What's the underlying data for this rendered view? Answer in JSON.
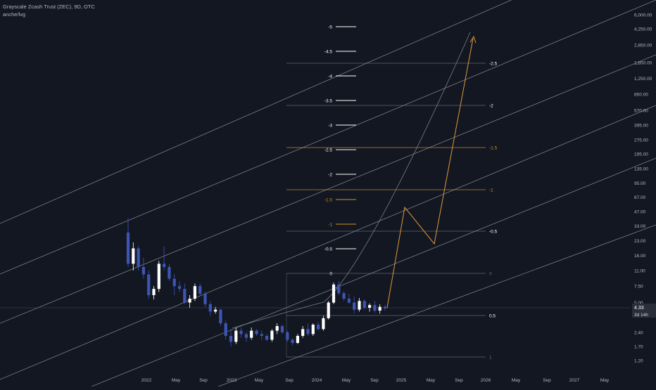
{
  "header": {
    "title": "Grayscale Zcash Trust (ZEC), 9D, OTC",
    "subtitle": "anche/lvg"
  },
  "chart_data": {
    "type": "candlestick",
    "y_scale": "log",
    "ylim": [
      1.1,
      8000
    ],
    "x_ticks": [
      "2022",
      "May",
      "Sep",
      "2023",
      "May",
      "Sep",
      "2024",
      "May",
      "Sep",
      "2025",
      "May",
      "Sep",
      "2026",
      "May",
      "Sep",
      "2027",
      "May"
    ],
    "y_ticks": [
      "6,000.00",
      "4,250.00",
      "2,850.00",
      "1,850.00",
      "1,250.00",
      "850.00",
      "570.00",
      "395.00",
      "275.00",
      "195.00",
      "135.00",
      "95.00",
      "67.00",
      "47.00",
      "33.00",
      "23.00",
      "16.00",
      "11.00",
      "7.50",
      "5.00",
      "2.40",
      "1.70",
      "1.20"
    ],
    "price_label": "4.33",
    "countdown_label": "3d 14h",
    "fib_left_labels": [
      "-5",
      "-4.5",
      "-4",
      "-3.5",
      "-3",
      "-2.5",
      "-2",
      "-1.5",
      "-1",
      "-0.5",
      "0"
    ],
    "fib_right_labels": [
      "-2.5",
      "-2",
      "-1.5",
      "-1",
      "-0.5",
      "0",
      "0.5",
      "1"
    ],
    "candles": [
      {
        "o": 28,
        "h": 40,
        "l": 12,
        "c": 13
      },
      {
        "o": 13,
        "h": 22,
        "l": 11,
        "c": 19
      },
      {
        "o": 19,
        "h": 20,
        "l": 11,
        "c": 12
      },
      {
        "o": 12,
        "h": 15,
        "l": 9,
        "c": 10
      },
      {
        "o": 10,
        "h": 11,
        "l": 5.5,
        "c": 6
      },
      {
        "o": 6,
        "h": 7.5,
        "l": 5.4,
        "c": 7
      },
      {
        "o": 7,
        "h": 14,
        "l": 6.5,
        "c": 13
      },
      {
        "o": 13,
        "h": 20,
        "l": 11,
        "c": 12
      },
      {
        "o": 12,
        "h": 13,
        "l": 8.5,
        "c": 9
      },
      {
        "o": 9,
        "h": 10,
        "l": 6,
        "c": 7.5
      },
      {
        "o": 7.5,
        "h": 8.5,
        "l": 6.5,
        "c": 7
      },
      {
        "o": 7,
        "h": 8,
        "l": 4.8,
        "c": 5
      },
      {
        "o": 5,
        "h": 6,
        "l": 4.4,
        "c": 5.5
      },
      {
        "o": 5.5,
        "h": 8,
        "l": 5.2,
        "c": 7.5
      },
      {
        "o": 7.5,
        "h": 8,
        "l": 6,
        "c": 6.2
      },
      {
        "o": 6.2,
        "h": 6.5,
        "l": 4.5,
        "c": 4.8
      },
      {
        "o": 4.8,
        "h": 5.2,
        "l": 3.6,
        "c": 4
      },
      {
        "o": 4,
        "h": 4.5,
        "l": 3.8,
        "c": 4.2
      },
      {
        "o": 4.2,
        "h": 4.3,
        "l": 2.8,
        "c": 3
      },
      {
        "o": 3,
        "h": 3.2,
        "l": 2.0,
        "c": 2.2
      },
      {
        "o": 2.2,
        "h": 2.6,
        "l": 1.7,
        "c": 1.9
      },
      {
        "o": 1.9,
        "h": 2.7,
        "l": 1.8,
        "c": 2.5
      },
      {
        "o": 2.5,
        "h": 2.7,
        "l": 2.1,
        "c": 2.3
      },
      {
        "o": 2.3,
        "h": 2.4,
        "l": 1.9,
        "c": 2.1
      },
      {
        "o": 2.1,
        "h": 2.7,
        "l": 2.0,
        "c": 2.5
      },
      {
        "o": 2.5,
        "h": 2.6,
        "l": 2.2,
        "c": 2.3
      },
      {
        "o": 2.3,
        "h": 2.5,
        "l": 2.0,
        "c": 2.2
      },
      {
        "o": 2.2,
        "h": 2.3,
        "l": 1.95,
        "c": 2.0
      },
      {
        "o": 2.0,
        "h": 2.6,
        "l": 1.9,
        "c": 2.5
      },
      {
        "o": 2.5,
        "h": 3.0,
        "l": 2.3,
        "c": 2.8
      },
      {
        "o": 2.8,
        "h": 2.9,
        "l": 2.3,
        "c": 2.4
      },
      {
        "o": 2.4,
        "h": 2.5,
        "l": 1.9,
        "c": 2.0
      },
      {
        "o": 2.0,
        "h": 2.1,
        "l": 1.75,
        "c": 1.85
      },
      {
        "o": 1.85,
        "h": 2.3,
        "l": 1.8,
        "c": 2.2
      },
      {
        "o": 2.2,
        "h": 2.8,
        "l": 2.1,
        "c": 2.6
      },
      {
        "o": 2.6,
        "h": 3.0,
        "l": 2.2,
        "c": 2.3
      },
      {
        "o": 2.3,
        "h": 3.0,
        "l": 2.2,
        "c": 2.9
      },
      {
        "o": 2.9,
        "h": 3.1,
        "l": 2.5,
        "c": 2.6
      },
      {
        "o": 2.6,
        "h": 3.6,
        "l": 2.5,
        "c": 3.4
      },
      {
        "o": 3.4,
        "h": 5.2,
        "l": 3.3,
        "c": 5.0
      },
      {
        "o": 5.0,
        "h": 8.2,
        "l": 4.8,
        "c": 7.8
      },
      {
        "o": 7.8,
        "h": 8.5,
        "l": 6.0,
        "c": 6.3
      },
      {
        "o": 6.3,
        "h": 6.6,
        "l": 5.2,
        "c": 5.5
      },
      {
        "o": 5.5,
        "h": 6.2,
        "l": 4.8,
        "c": 5.0
      },
      {
        "o": 5.0,
        "h": 5.8,
        "l": 3.8,
        "c": 4.2
      },
      {
        "o": 4.2,
        "h": 5.6,
        "l": 4.0,
        "c": 5.2
      },
      {
        "o": 5.2,
        "h": 5.4,
        "l": 4.2,
        "c": 4.4
      },
      {
        "o": 4.4,
        "h": 4.9,
        "l": 4.0,
        "c": 4.7
      },
      {
        "o": 4.7,
        "h": 5.2,
        "l": 3.9,
        "c": 4.1
      },
      {
        "o": 4.1,
        "h": 4.8,
        "l": 3.8,
        "c": 4.5
      },
      {
        "o": 4.5,
        "h": 4.7,
        "l": 4.1,
        "c": 4.33
      }
    ]
  },
  "colors": {
    "background": "#131722",
    "bull": "#ffffff",
    "bear": "#3d56b5",
    "channel": "#9598a1",
    "fib": "#9598a1",
    "fib_orange": "#d0922c",
    "projection": "#e09a3a",
    "price_tag": "#2a2e39"
  }
}
